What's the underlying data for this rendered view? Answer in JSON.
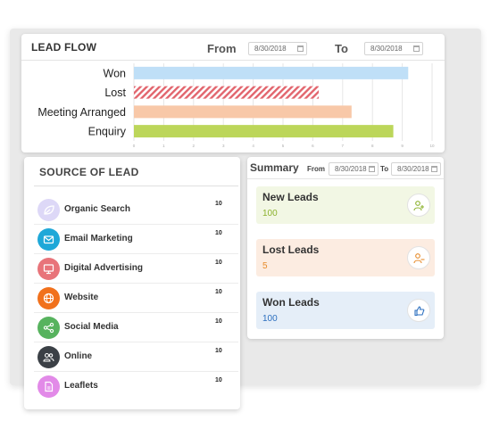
{
  "lead_flow": {
    "title": "LEAD FLOW",
    "from_label": "From",
    "from_date": "8/30/2018",
    "to_label": "To",
    "to_date": "8/30/2018"
  },
  "chart_data": {
    "type": "bar",
    "orientation": "horizontal",
    "categories": [
      "Won",
      "Lost",
      "Meeting Arranged",
      "Enquiry"
    ],
    "values": [
      9.2,
      6.2,
      7.3,
      8.7
    ],
    "xlim": [
      0,
      10
    ],
    "x_ticks": [
      "0",
      "1",
      "2",
      "3",
      "4",
      "5",
      "6",
      "7",
      "8",
      "9",
      "10"
    ],
    "grid": true,
    "bar_colors": [
      "#bfdff7",
      "#e2656d",
      "#f8c8a8",
      "#bcd65a"
    ],
    "hatched": [
      false,
      true,
      false,
      false
    ]
  },
  "source_of_lead": {
    "title": "SOURCE OF LEAD",
    "items": [
      {
        "label": "Organic Search",
        "count": "10",
        "icon": "leaf-icon",
        "color": "#ddd8f7"
      },
      {
        "label": "Email Marketing",
        "count": "10",
        "icon": "mail-icon",
        "color": "#1fa8d8"
      },
      {
        "label": "Digital Advertising",
        "count": "10",
        "icon": "monitor-icon",
        "color": "#e8747a"
      },
      {
        "label": "Website",
        "count": "10",
        "icon": "globe-icon",
        "color": "#f1711c"
      },
      {
        "label": "Social Media",
        "count": "10",
        "icon": "share-icon",
        "color": "#57b35e"
      },
      {
        "label": "Online",
        "count": "10",
        "icon": "users-icon",
        "color": "#3b4046"
      },
      {
        "label": "Leaflets",
        "count": "10",
        "icon": "document-icon",
        "color": "#e28ae8"
      }
    ]
  },
  "summary": {
    "title": "Summary",
    "from_label": "From",
    "from_date": "8/30/2018",
    "to_label": "To",
    "to_date": "8/30/2018",
    "tiles": [
      {
        "label": "New Leads",
        "value": "100",
        "icon": "add-user-icon",
        "bg": "#f2f7e4",
        "value_color": "#8cb22e"
      },
      {
        "label": "Lost Leads",
        "value": "5",
        "icon": "remove-user-icon",
        "bg": "#fcece1",
        "value_color": "#e78b2a"
      },
      {
        "label": "Won Leads",
        "value": "100",
        "icon": "thumbs-up-icon",
        "bg": "#e5eef8",
        "value_color": "#2c6fbf"
      }
    ]
  }
}
